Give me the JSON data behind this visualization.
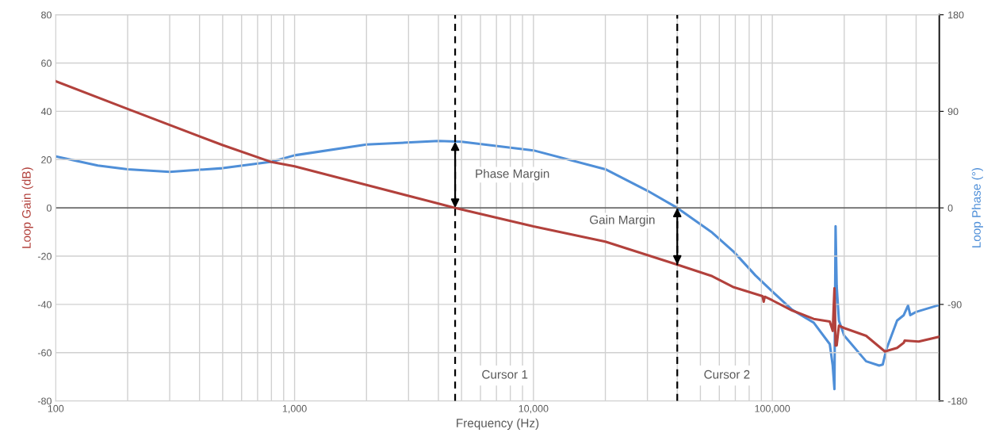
{
  "chart_data": {
    "type": "line",
    "xlabel": "Frequency (Hz)",
    "ylabel": "Loop Gain (dB)",
    "y2label": "Loop Phase (°)",
    "log": "x",
    "grid": true,
    "legend": false,
    "xlim": [
      100,
      500000
    ],
    "xticks": [
      100,
      {
        "value": 200,
        "label": null
      },
      {
        "value": 300,
        "label": null
      },
      {
        "value": 400,
        "label": null
      },
      {
        "value": 500,
        "label": null
      },
      {
        "value": 600,
        "label": null
      },
      {
        "value": 700,
        "label": null
      },
      {
        "value": 800,
        "label": null
      },
      {
        "value": 900,
        "label": null
      },
      {
        "value": 1000,
        "label": "1,000"
      },
      {
        "value": 2000,
        "label": null
      },
      {
        "value": 3000,
        "label": null
      },
      {
        "value": 4000,
        "label": null
      },
      {
        "value": 5000,
        "label": null
      },
      {
        "value": 6000,
        "label": null
      },
      {
        "value": 7000,
        "label": null
      },
      {
        "value": 8000,
        "label": null
      },
      {
        "value": 9000,
        "label": null
      },
      {
        "value": 10000,
        "label": "10,000"
      },
      {
        "value": 20000,
        "label": null
      },
      {
        "value": 30000,
        "label": null
      },
      {
        "value": 40000,
        "label": null
      },
      {
        "value": 50000,
        "label": null
      },
      {
        "value": 60000,
        "label": null
      },
      {
        "value": 70000,
        "label": null
      },
      {
        "value": 80000,
        "label": null
      },
      {
        "value": 90000,
        "label": null
      },
      {
        "value": 100000,
        "label": "100,000"
      },
      {
        "value": 200000,
        "label": null
      },
      {
        "value": 300000,
        "label": null
      },
      {
        "value": 400000,
        "label": null
      },
      {
        "value": 500000,
        "label": null
      }
    ],
    "ylim": [
      -80,
      80
    ],
    "yticks": [
      -80,
      -60,
      -40,
      -20,
      0,
      20,
      40,
      60,
      80
    ],
    "y2lim": [
      -180,
      180
    ],
    "y2ticks": [
      -180,
      -90,
      0,
      90,
      180
    ],
    "series": [
      {
        "color": "#b2413c",
        "axis": "y",
        "x": [
          100,
          200,
          500,
          800,
          1000,
          2000,
          4700,
          10000,
          20000,
          40000,
          56000,
          69000,
          91000,
          92000,
          93000,
          100000,
          121000,
          149000,
          174000,
          179000,
          182000,
          184000,
          186000,
          190000,
          200000,
          247000,
          296000,
          333000,
          355000,
          358000,
          410000,
          500000
        ],
        "values": [
          52.5,
          41,
          26,
          19,
          17.2,
          9.5,
          0,
          -7.7,
          -14,
          -23.5,
          -28.3,
          -32.9,
          -36.6,
          -38.9,
          -36.8,
          -38.3,
          -42.5,
          -46,
          -47.1,
          -51,
          -33.3,
          -57,
          -57,
          -48.8,
          -49.8,
          -53,
          -59.5,
          -58,
          -55.9,
          -55,
          -55.4,
          -53.4
        ]
      },
      {
        "color": "#4f8fd8",
        "axis": "y2",
        "x": [
          100,
          150,
          200,
          300,
          500,
          800,
          1000,
          2000,
          4000,
          5000,
          10000,
          20000,
          30000,
          40000,
          56000,
          69000,
          85000,
          100000,
          121000,
          149000,
          174000,
          179000,
          182000,
          184000,
          186000,
          190000,
          200000,
          247000,
          280000,
          290000,
          300000,
          333000,
          355000,
          370000,
          378000,
          400000,
          500000
        ],
        "values": [
          48,
          39.5,
          36,
          33.6,
          37,
          43,
          49,
          59,
          62.4,
          61.7,
          53.6,
          36,
          16,
          0,
          -23,
          -41,
          -63,
          -78,
          -95,
          -107,
          -127,
          -147,
          -169,
          -17,
          -73,
          -105,
          -119,
          -143,
          -147,
          -146,
          -132,
          -105,
          -100,
          -91,
          -100,
          -97,
          -90.5
        ]
      }
    ],
    "ref_lines": [
      {
        "axis": "x",
        "value": 4700,
        "label": "Cursor 1",
        "color": "#000000",
        "line_style": "dashed"
      },
      {
        "axis": "x",
        "value": 40000,
        "label": "Cursor 2",
        "color": "#000000",
        "line_style": "dashed"
      },
      {
        "axis": "y",
        "value": 0,
        "color": "#404040",
        "line_style": "solid"
      }
    ],
    "annotations": [
      "Phase Margin",
      "Gain Margin"
    ]
  }
}
